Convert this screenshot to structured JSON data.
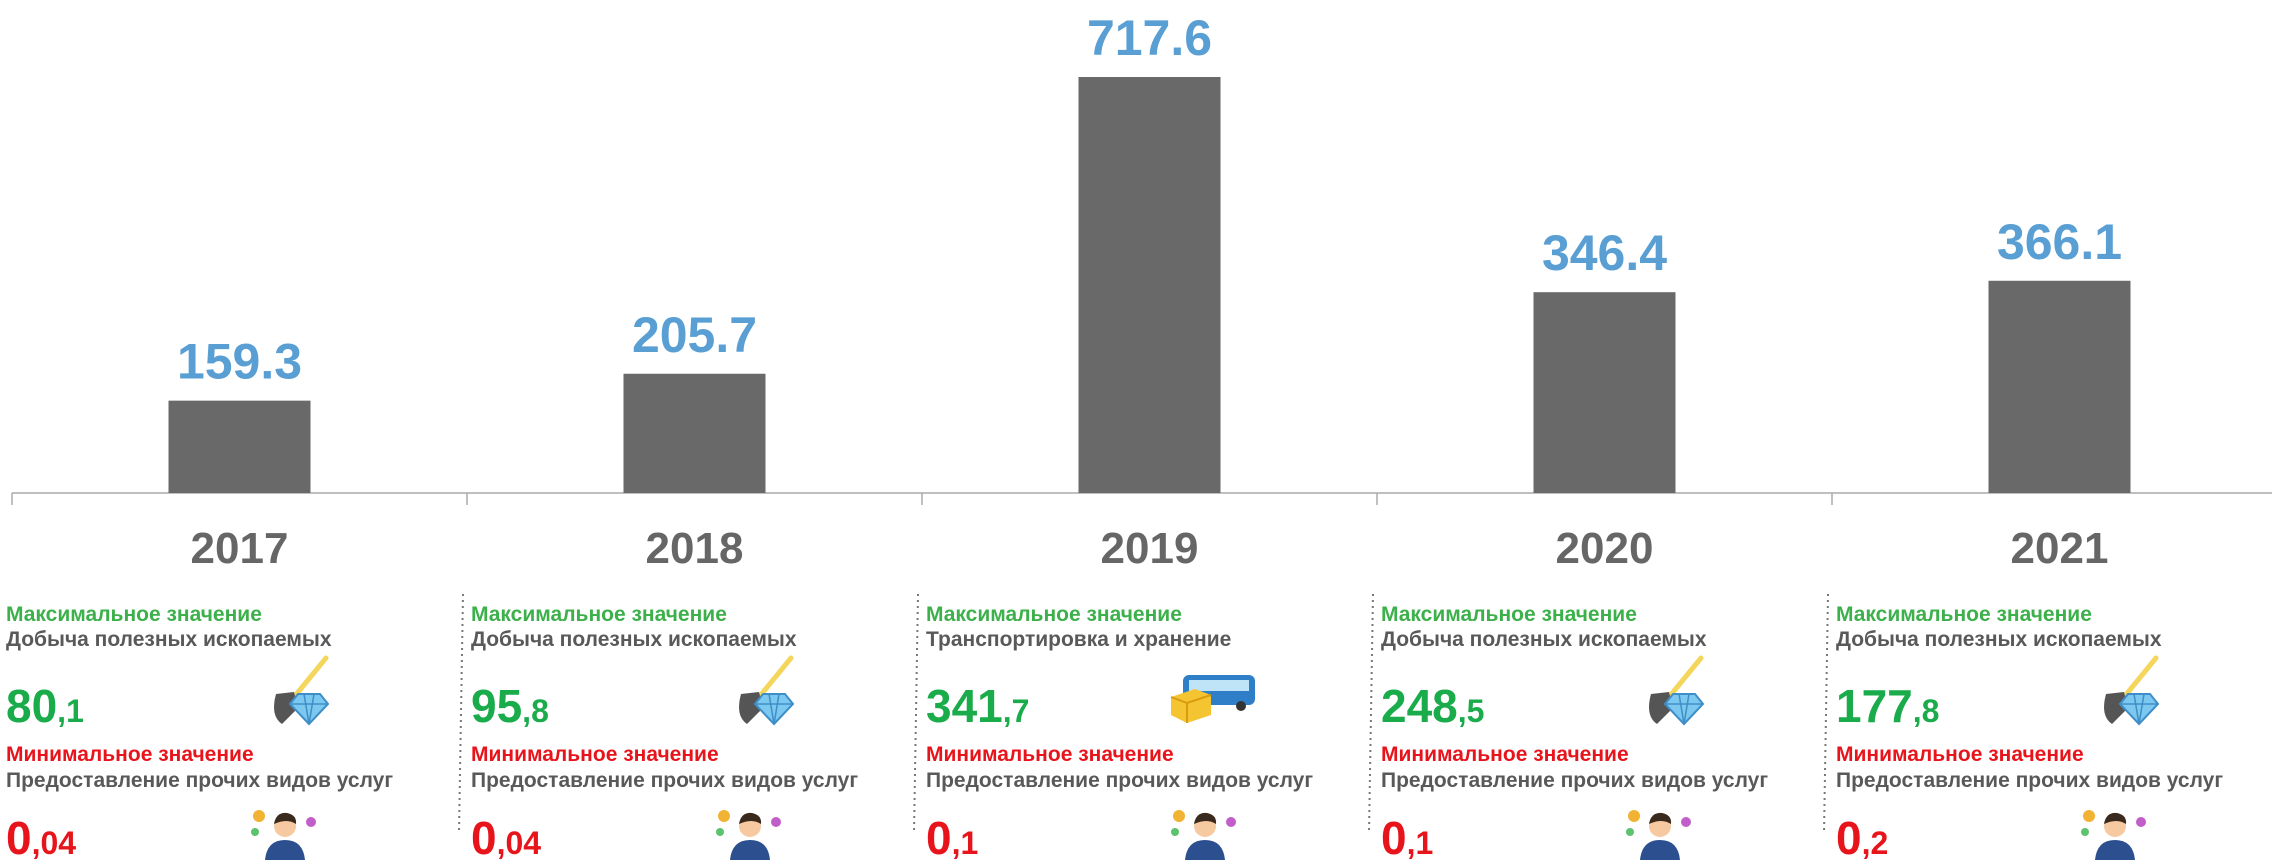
{
  "chart_data": {
    "type": "bar",
    "categories": [
      "2017",
      "2018",
      "2019",
      "2020",
      "2021"
    ],
    "values": [
      159.3,
      205.7,
      717.6,
      346.4,
      366.1
    ],
    "color": "#696969",
    "label_color": "#5a9fd4"
  },
  "panels": [
    {
      "max_label": "Максимальное значение",
      "max_sector": "Добыча полезных ископаемых",
      "max_value": {
        "whole": "80",
        "fraction": ",1"
      },
      "max_icon": "mining",
      "min_label": "Минимальное значение",
      "min_sector": "Предоставление прочих видов услуг",
      "min_value": {
        "whole": "0",
        "fraction": ",04"
      }
    },
    {
      "max_label": "Максимальное значение",
      "max_sector": "Добыча полезных ископаемых",
      "max_value": {
        "whole": "95",
        "fraction": ",8"
      },
      "max_icon": "mining",
      "min_label": "Минимальное значение",
      "min_sector": "Предоставление прочих видов услуг",
      "min_value": {
        "whole": "0",
        "fraction": ",04"
      }
    },
    {
      "max_label": "Максимальное значение",
      "max_sector": "Транспортировка и хранение",
      "max_value": {
        "whole": "341",
        "fraction": ",7"
      },
      "max_icon": "transport",
      "min_label": "Минимальное значение",
      "min_sector": "Предоставление прочих видов услуг",
      "min_value": {
        "whole": "0",
        "fraction": ",1"
      }
    },
    {
      "max_label": "Максимальное значение",
      "max_sector": "Добыча полезных ископаемых",
      "max_value": {
        "whole": "248",
        "fraction": ",5"
      },
      "max_icon": "mining",
      "min_label": "Минимальное значение",
      "min_sector": "Предоставление прочих видов услуг",
      "min_value": {
        "whole": "0",
        "fraction": ",1"
      }
    },
    {
      "max_label": "Максимальное значение",
      "max_sector": "Добыча полезных ископаемых",
      "max_value": {
        "whole": "177",
        "fraction": ",8"
      },
      "max_icon": "mining",
      "min_label": "Минимальное значение",
      "min_sector": "Предоставление прочих видов услуг",
      "min_value": {
        "whole": "0",
        "fraction": ",2"
      }
    }
  ]
}
